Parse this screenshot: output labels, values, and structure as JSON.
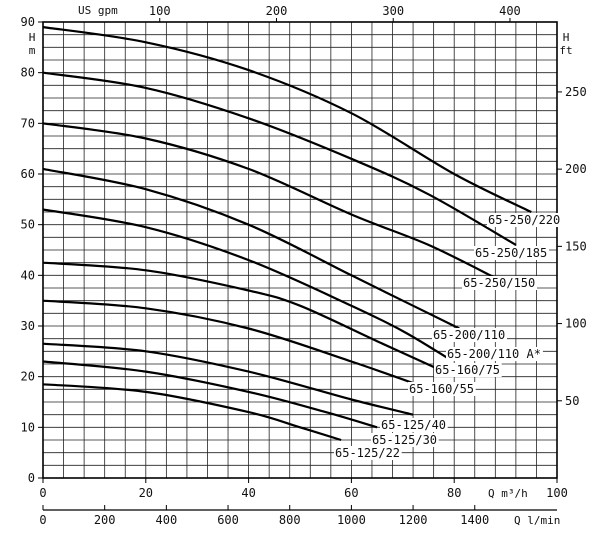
{
  "chart_data": {
    "type": "line",
    "title": "",
    "units": {
      "q_m3h": "Q m³/h",
      "q_lmin": "Q l/min",
      "us_gpm": "US gpm",
      "h_m": "H m",
      "h_ft": "H ft"
    },
    "axes": {
      "x_m3h": {
        "range": [
          0,
          100
        ],
        "ticks": [
          "0",
          "20",
          "40",
          "60",
          "80",
          "100"
        ],
        "tick_values": [
          0,
          20,
          40,
          60,
          80,
          100
        ]
      },
      "x_lmin": {
        "range": [
          0,
          1667
        ],
        "ticks": [
          "0",
          "200",
          "400",
          "600",
          "800",
          "1000",
          "1200",
          "1400"
        ],
        "tick_values": [
          0,
          200,
          400,
          600,
          800,
          1000,
          1200,
          1400
        ]
      },
      "x_gpm": {
        "range": [
          0,
          440
        ],
        "ticks": [
          "100",
          "200",
          "300",
          "400"
        ],
        "tick_values": [
          100,
          200,
          300,
          400
        ]
      },
      "y_m": {
        "range": [
          0,
          90
        ],
        "ticks": [
          "0",
          "10",
          "20",
          "30",
          "40",
          "50",
          "60",
          "70",
          "80",
          "90"
        ],
        "tick_values": [
          0,
          10,
          20,
          30,
          40,
          50,
          60,
          70,
          80,
          90
        ]
      },
      "y_ft": {
        "range": [
          0,
          295
        ],
        "ticks": [
          "50",
          "100",
          "150",
          "200",
          "250"
        ],
        "tick_values": [
          50,
          100,
          150,
          200,
          250
        ]
      }
    },
    "grid": true,
    "series": [
      {
        "name": "65-250/220",
        "points": [
          [
            0,
            89
          ],
          [
            20,
            86
          ],
          [
            40,
            80.5
          ],
          [
            60,
            72
          ],
          [
            80,
            60
          ],
          [
            95,
            52.5
          ]
        ]
      },
      {
        "name": "65-250/185",
        "points": [
          [
            0,
            80
          ],
          [
            20,
            77
          ],
          [
            40,
            71
          ],
          [
            60,
            63
          ],
          [
            75,
            56
          ],
          [
            92,
            46
          ]
        ]
      },
      {
        "name": "65-250/150",
        "points": [
          [
            0,
            70
          ],
          [
            20,
            67
          ],
          [
            40,
            61
          ],
          [
            60,
            52
          ],
          [
            75,
            46
          ],
          [
            88,
            39.5
          ]
        ]
      },
      {
        "name": "65-200/110",
        "points": [
          [
            0,
            61
          ],
          [
            20,
            57
          ],
          [
            40,
            50
          ],
          [
            60,
            40
          ],
          [
            70,
            35
          ],
          [
            81,
            29.5
          ]
        ]
      },
      {
        "name": "65-200/110 A*",
        "points": [
          [
            0,
            53
          ],
          [
            20,
            49.5
          ],
          [
            40,
            43
          ],
          [
            60,
            34
          ],
          [
            70,
            29
          ],
          [
            79,
            23.5
          ]
        ]
      },
      {
        "name": "65-160/75",
        "points": [
          [
            0,
            42.5
          ],
          [
            20,
            41
          ],
          [
            40,
            37
          ],
          [
            50,
            34
          ],
          [
            65,
            27
          ],
          [
            78,
            21
          ]
        ]
      },
      {
        "name": "65-160/55",
        "points": [
          [
            0,
            35
          ],
          [
            20,
            33.5
          ],
          [
            40,
            29.5
          ],
          [
            60,
            23
          ],
          [
            74,
            18
          ]
        ]
      },
      {
        "name": "65-125/40",
        "points": [
          [
            0,
            26.5
          ],
          [
            20,
            25
          ],
          [
            40,
            21
          ],
          [
            60,
            15.5
          ],
          [
            72,
            12.5
          ]
        ]
      },
      {
        "name": "65-125/30",
        "points": [
          [
            0,
            23
          ],
          [
            20,
            21
          ],
          [
            40,
            17
          ],
          [
            55,
            13
          ],
          [
            65,
            10
          ]
        ]
      },
      {
        "name": "65-125/22",
        "points": [
          [
            0,
            18.5
          ],
          [
            20,
            17
          ],
          [
            40,
            13
          ],
          [
            50,
            10
          ],
          [
            58,
            7.5
          ]
        ]
      }
    ],
    "labels": [
      {
        "text": "65-250/220",
        "series": "65-250/220"
      },
      {
        "text": "65-250/185",
        "series": "65-250/185"
      },
      {
        "text": "65-250/150",
        "series": "65-250/150"
      },
      {
        "text": "65-200/110",
        "series": "65-200/110"
      },
      {
        "text": "65-200/110 A*",
        "series": "65-200/110 A*"
      },
      {
        "text": "65-160/75",
        "series": "65-160/75"
      },
      {
        "text": "65-160/55",
        "series": "65-160/55"
      },
      {
        "text": "65-125/40",
        "series": "65-125/40"
      },
      {
        "text": "65-125/30",
        "series": "65-125/30"
      },
      {
        "text": "65-125/22",
        "series": "65-125/22"
      }
    ]
  }
}
